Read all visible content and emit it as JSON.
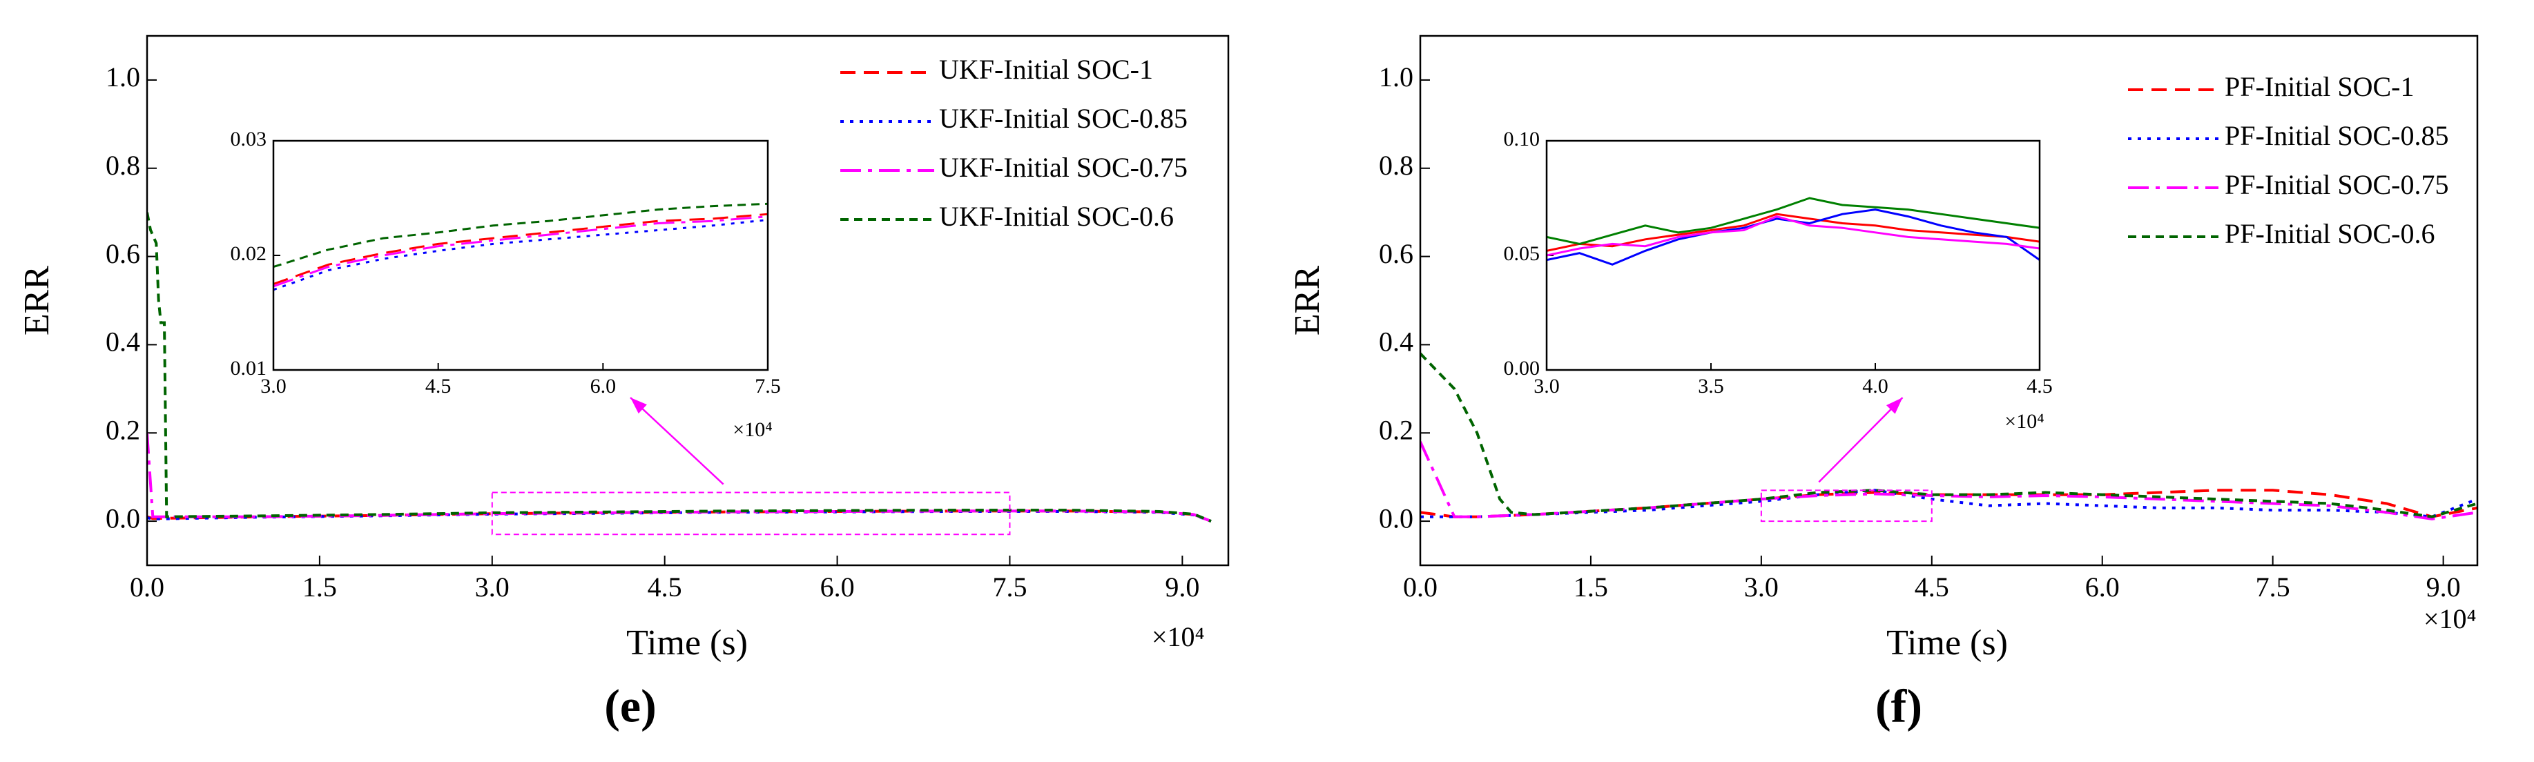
{
  "chart_data": [
    {
      "type": "line",
      "panel_label": "(e)",
      "xlabel": "Time (s)",
      "ylabel": "ERR",
      "x_multiplier": "×10⁴",
      "xlim": [
        0,
        9.4
      ],
      "ylim": [
        -0.1,
        1.1
      ],
      "xticks": [
        {
          "value": 0,
          "label": "0.0"
        },
        1.5,
        {
          "value": 3,
          "label": "3.0"
        },
        4.5,
        {
          "value": 6,
          "label": "6.0"
        },
        7.5,
        {
          "value": 9,
          "label": "9.0"
        }
      ],
      "yticks": [
        {
          "value": 0,
          "label": "0.0"
        },
        0.2,
        0.4,
        0.6,
        0.8,
        {
          "value": 1,
          "label": "1.0"
        }
      ],
      "legend": "upper right",
      "series": [
        {
          "name": "UKF-Initial SOC-1",
          "color": "#ff0000",
          "dash": "dashed",
          "x": [
            0,
            0.05,
            1,
            2,
            3,
            4,
            5,
            6,
            7,
            8,
            8.8,
            9.1,
            9.25
          ],
          "values": [
            0.01,
            0.006,
            0.01,
            0.013,
            0.017,
            0.019,
            0.021,
            0.022,
            0.023,
            0.023,
            0.021,
            0.015,
            0.0
          ]
        },
        {
          "name": "UKF-Initial SOC-0.85",
          "color": "#0000ff",
          "dash": "dotted",
          "x": [
            0,
            0.05,
            1,
            2,
            3,
            4,
            5,
            6,
            7,
            8,
            8.8,
            9.1,
            9.25
          ],
          "values": [
            0.008,
            0.005,
            0.009,
            0.012,
            0.016,
            0.018,
            0.02,
            0.021,
            0.022,
            0.022,
            0.02,
            0.014,
            0.0
          ]
        },
        {
          "name": "UKF-Initial SOC-0.75",
          "color": "#ff00ff",
          "dash": "dashdot",
          "x": [
            0,
            0.05,
            1,
            2,
            3,
            4,
            5,
            6,
            7,
            8,
            8.8,
            9.1,
            9.25
          ],
          "values": [
            0.2,
            0.01,
            0.01,
            0.013,
            0.017,
            0.019,
            0.021,
            0.022,
            0.023,
            0.023,
            0.021,
            0.015,
            0.0
          ]
        },
        {
          "name": "UKF-Initial SOC-0.6",
          "color": "#006400",
          "dash": "shortdash",
          "x": [
            0,
            0.03,
            0.08,
            0.1,
            0.12,
            0.15,
            0.17,
            1,
            2,
            3,
            4,
            5,
            6,
            7,
            8,
            8.8,
            9.1,
            9.25
          ],
          "values": [
            0.7,
            0.66,
            0.63,
            0.5,
            0.45,
            0.45,
            0.01,
            0.012,
            0.015,
            0.019,
            0.021,
            0.023,
            0.024,
            0.025,
            0.025,
            0.022,
            0.016,
            0.0
          ]
        }
      ],
      "zoom_box": {
        "xlim": [
          3,
          7.5
        ],
        "ylim": [
          -0.03,
          0.065
        ],
        "color": "#ff00ff"
      },
      "inset": {
        "x_multiplier": "×10⁴",
        "xlim": [
          3,
          7.5
        ],
        "ylim": [
          0.01,
          0.03
        ],
        "xticks": [
          {
            "value": 3,
            "label": "3.0"
          },
          4.5,
          {
            "value": 6,
            "label": "6.0"
          },
          7.5
        ],
        "yticks": [
          0.01,
          0.02,
          0.03
        ],
        "series": [
          {
            "color": "#ff0000",
            "dash": "dashed",
            "x": [
              3,
              3.5,
              4,
              4.5,
              5,
              5.5,
              6,
              6.5,
              7,
              7.5
            ],
            "values": [
              0.0175,
              0.0192,
              0.0202,
              0.021,
              0.0215,
              0.022,
              0.0225,
              0.023,
              0.0232,
              0.0236
            ]
          },
          {
            "color": "#0000ff",
            "dash": "dotted",
            "x": [
              3,
              3.5,
              4,
              4.5,
              5,
              5.5,
              6,
              6.5,
              7,
              7.5
            ],
            "values": [
              0.017,
              0.0187,
              0.0197,
              0.0204,
              0.021,
              0.0214,
              0.0218,
              0.0222,
              0.0226,
              0.0231
            ]
          },
          {
            "color": "#ff00ff",
            "dash": "dashdot",
            "x": [
              3,
              3.5,
              4,
              4.5,
              5,
              5.5,
              6,
              6.5,
              7,
              7.5
            ],
            "values": [
              0.0173,
              0.019,
              0.02,
              0.0208,
              0.0213,
              0.0218,
              0.0223,
              0.0228,
              0.023,
              0.0234
            ]
          },
          {
            "color": "#006400",
            "dash": "shortdash",
            "x": [
              3,
              3.5,
              4,
              4.5,
              5,
              5.5,
              6,
              6.5,
              7,
              7.5
            ],
            "values": [
              0.019,
              0.0205,
              0.0215,
              0.022,
              0.0226,
              0.023,
              0.0235,
              0.024,
              0.0243,
              0.0245
            ]
          }
        ]
      }
    },
    {
      "type": "line",
      "panel_label": "(f)",
      "xlabel": "Time (s)",
      "ylabel": "ERR",
      "x_multiplier": "×10⁴",
      "xlim": [
        0,
        9.3
      ],
      "ylim": [
        -0.1,
        1.1
      ],
      "xticks": [
        {
          "value": 0,
          "label": "0.0"
        },
        1.5,
        {
          "value": 3,
          "label": "3.0"
        },
        4.5,
        {
          "value": 6,
          "label": "6.0"
        },
        7.5,
        {
          "value": 9,
          "label": "9.0"
        }
      ],
      "yticks": [
        {
          "value": 0,
          "label": "0.0"
        },
        0.2,
        0.4,
        0.6,
        0.8,
        {
          "value": 1,
          "label": "1.0"
        }
      ],
      "legend": "upper right",
      "series": [
        {
          "name": "PF-Initial SOC-1",
          "color": "#ff0000",
          "dash": "dashed",
          "x": [
            0,
            0.3,
            0.5,
            1,
            2,
            3,
            3.5,
            4,
            4.5,
            5,
            5.5,
            6,
            6.5,
            7,
            7.5,
            8,
            8.5,
            8.9,
            9.3
          ],
          "values": [
            0.02,
            0.01,
            0.01,
            0.015,
            0.03,
            0.05,
            0.06,
            0.065,
            0.06,
            0.06,
            0.06,
            0.06,
            0.065,
            0.07,
            0.07,
            0.06,
            0.04,
            0.01,
            0.03
          ]
        },
        {
          "name": "PF-Initial SOC-0.85",
          "color": "#0000ff",
          "dash": "dotted",
          "x": [
            0,
            0.3,
            0.5,
            1,
            2,
            3,
            3.5,
            4,
            4.5,
            5,
            5.5,
            6,
            6.5,
            7,
            7.5,
            8,
            8.5,
            8.9,
            9.3
          ],
          "values": [
            0.01,
            0.01,
            0.01,
            0.015,
            0.025,
            0.045,
            0.06,
            0.07,
            0.05,
            0.035,
            0.04,
            0.035,
            0.03,
            0.03,
            0.025,
            0.025,
            0.02,
            0.01,
            0.05
          ]
        },
        {
          "name": "PF-Initial SOC-0.75",
          "color": "#ff00ff",
          "dash": "dashdot",
          "x": [
            0,
            0.3,
            0.5,
            1,
            2,
            3,
            3.5,
            4,
            4.5,
            5,
            5.5,
            6,
            6.5,
            7,
            7.5,
            8,
            8.5,
            8.9,
            9.3
          ],
          "values": [
            0.18,
            0.01,
            0.01,
            0.015,
            0.03,
            0.05,
            0.058,
            0.062,
            0.058,
            0.055,
            0.058,
            0.055,
            0.05,
            0.045,
            0.04,
            0.035,
            0.02,
            0.005,
            0.02
          ]
        },
        {
          "name": "PF-Initial SOC-0.6",
          "color": "#006400",
          "dash": "shortdash",
          "x": [
            0,
            0.3,
            0.5,
            0.7,
            0.8,
            1,
            2,
            3,
            3.5,
            4,
            4.5,
            5,
            5.5,
            6,
            6.5,
            7,
            7.5,
            8,
            8.5,
            8.9,
            9.3
          ],
          "values": [
            0.38,
            0.3,
            0.2,
            0.05,
            0.02,
            0.015,
            0.03,
            0.05,
            0.065,
            0.07,
            0.06,
            0.06,
            0.065,
            0.06,
            0.055,
            0.05,
            0.045,
            0.04,
            0.025,
            0.01,
            0.04
          ]
        }
      ],
      "zoom_box": {
        "xlim": [
          3,
          4.5
        ],
        "ylim": [
          0,
          0.07
        ],
        "color": "#ff00ff"
      },
      "inset": {
        "x_multiplier": "×10⁴",
        "xlim": [
          3,
          4.5
        ],
        "ylim": [
          0,
          0.1
        ],
        "xticks": [
          {
            "value": 3,
            "label": "3.0"
          },
          3.5,
          {
            "value": 4,
            "label": "4.0"
          },
          4.5
        ],
        "yticks": [
          {
            "value": 0,
            "label": "0.00"
          },
          0.05,
          {
            "value": 0.1,
            "label": "0.10"
          }
        ],
        "series": [
          {
            "color": "#ff0000",
            "dash": "solid",
            "x": [
              3,
              3.1,
              3.2,
              3.3,
              3.4,
              3.5,
              3.6,
              3.7,
              3.8,
              3.9,
              4,
              4.1,
              4.2,
              4.3,
              4.4,
              4.5
            ],
            "values": [
              0.052,
              0.055,
              0.054,
              0.057,
              0.059,
              0.061,
              0.063,
              0.068,
              0.066,
              0.064,
              0.063,
              0.061,
              0.06,
              0.059,
              0.058,
              0.056
            ]
          },
          {
            "color": "#0000ff",
            "dash": "solid",
            "x": [
              3,
              3.1,
              3.2,
              3.3,
              3.4,
              3.5,
              3.6,
              3.7,
              3.8,
              3.9,
              4,
              4.1,
              4.2,
              4.3,
              4.4,
              4.5
            ],
            "values": [
              0.048,
              0.051,
              0.046,
              0.052,
              0.057,
              0.06,
              0.062,
              0.066,
              0.064,
              0.068,
              0.07,
              0.067,
              0.063,
              0.06,
              0.058,
              0.048
            ]
          },
          {
            "color": "#ff00ff",
            "dash": "solid",
            "x": [
              3,
              3.1,
              3.2,
              3.3,
              3.4,
              3.5,
              3.6,
              3.7,
              3.8,
              3.9,
              4,
              4.1,
              4.2,
              4.3,
              4.4,
              4.5
            ],
            "values": [
              0.05,
              0.053,
              0.055,
              0.054,
              0.058,
              0.06,
              0.061,
              0.067,
              0.063,
              0.062,
              0.06,
              0.058,
              0.057,
              0.056,
              0.055,
              0.053
            ]
          },
          {
            "color": "#008000",
            "dash": "solid",
            "x": [
              3,
              3.1,
              3.2,
              3.3,
              3.4,
              3.5,
              3.6,
              3.7,
              3.8,
              3.9,
              4,
              4.1,
              4.2,
              4.3,
              4.4,
              4.5
            ],
            "values": [
              0.058,
              0.055,
              0.059,
              0.063,
              0.06,
              0.062,
              0.066,
              0.07,
              0.075,
              0.072,
              0.071,
              0.07,
              0.068,
              0.066,
              0.064,
              0.062
            ]
          }
        ]
      }
    }
  ]
}
